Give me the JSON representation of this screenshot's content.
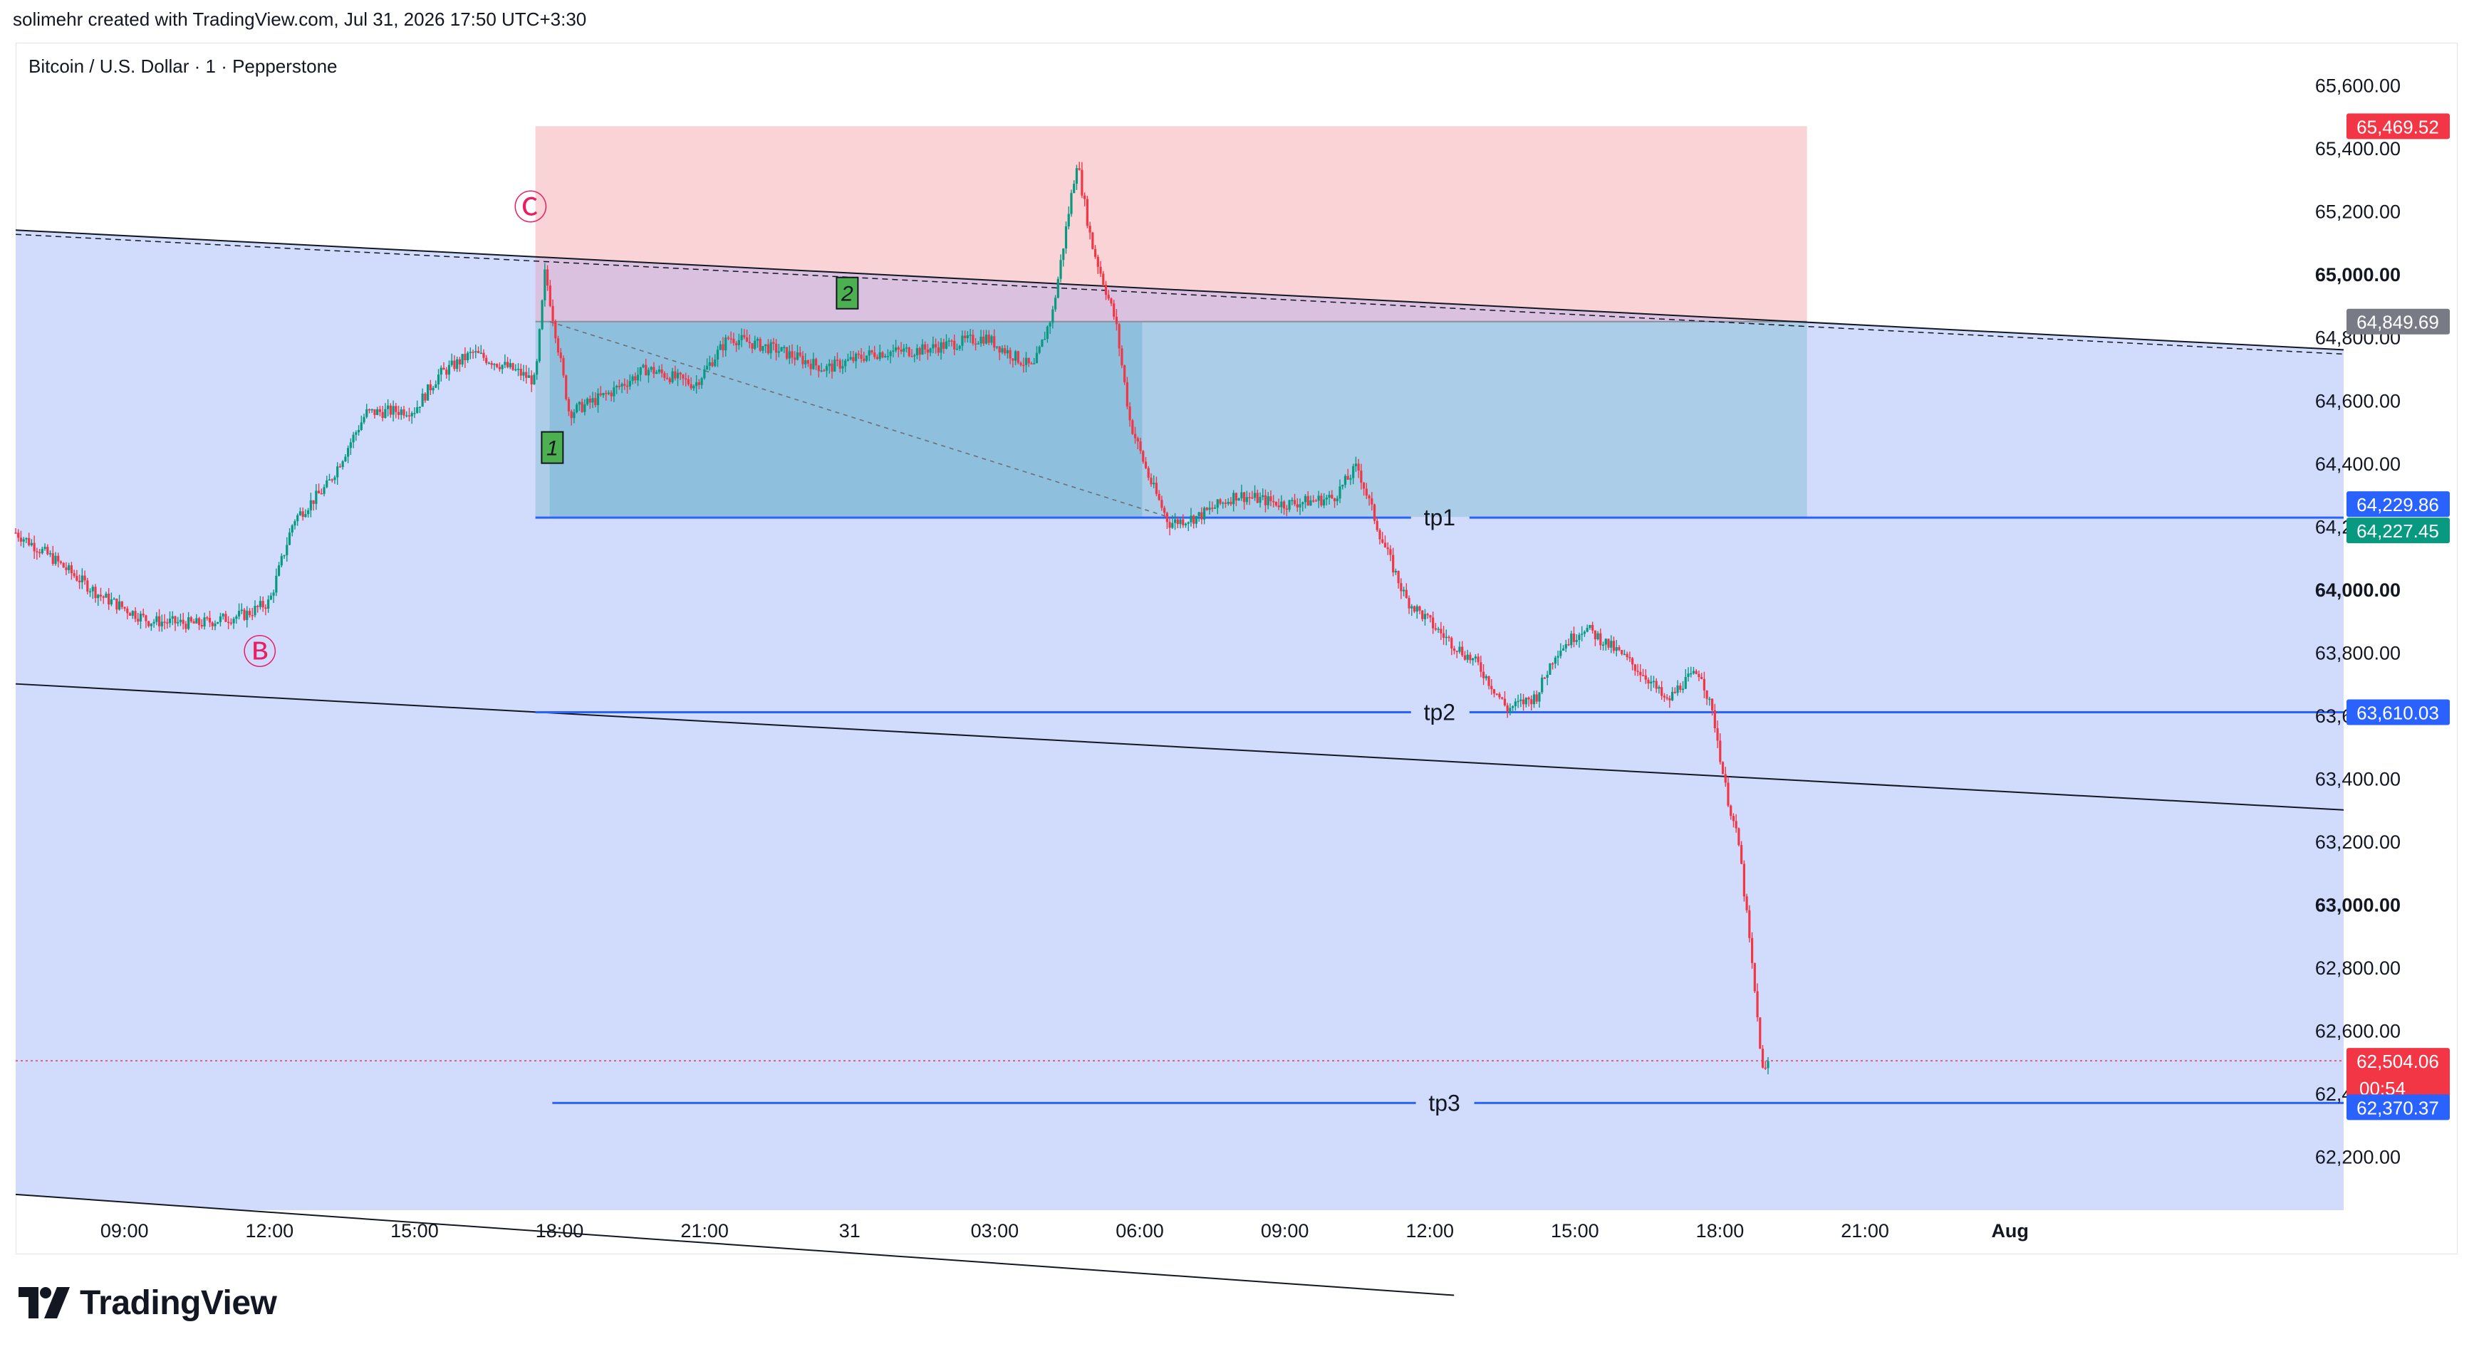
{
  "header": {
    "text": "solimehr created with TradingView.com, Jul 31, 2026 17:50 UTC+3:30"
  },
  "symbol_title": "Bitcoin / U.S. Dollar · 1 · Pepperstone",
  "footer": {
    "brand": "TradingView"
  },
  "colors": {
    "channel_fill": "#d1dcfc",
    "stop_zone": "#f9d3d6",
    "target_zone": "#a9cbe6",
    "target_zone_dark": "#8bbfdb",
    "overlap_zone": "#d6bfe0",
    "level_line": "#2962ff",
    "price_up": "#089981",
    "price_down": "#f23645",
    "wave_label": "#e91e63"
  },
  "chart_data": {
    "type": "candlestick",
    "title": "Bitcoin / U.S. Dollar · 1 · Pepperstone",
    "ylim": [
      62030,
      65730
    ],
    "y_ticks": [
      62200,
      62400,
      62600,
      62800,
      63000,
      63200,
      63400,
      63600,
      63800,
      64000,
      64200,
      64400,
      64600,
      64800,
      65000,
      65200,
      65400,
      65600
    ],
    "y_tick_labels": [
      "62,200.00",
      "62,400.00",
      "62,600.00",
      "62,800.00",
      "63,000.00",
      "63,200.00",
      "63,400.00",
      "63,600.00",
      "63,800.00",
      "64,000.00",
      "64,200.00",
      "64,400.00",
      "64,600.00",
      "64,800.00",
      "65,000.00",
      "65,200.00",
      "65,400.00",
      "65,600.00"
    ],
    "bold_y_ticks": [
      63000,
      64000,
      65000
    ],
    "x_ticks": [
      {
        "label": "09:00",
        "t": 9
      },
      {
        "label": "12:00",
        "t": 12
      },
      {
        "label": "15:00",
        "t": 15
      },
      {
        "label": "18:00",
        "t": 18
      },
      {
        "label": "21:00",
        "t": 21
      },
      {
        "label": "31",
        "t": 24
      },
      {
        "label": "03:00",
        "t": 27
      },
      {
        "label": "06:00",
        "t": 30
      },
      {
        "label": "09:00",
        "t": 33
      },
      {
        "label": "12:00",
        "t": 36
      },
      {
        "label": "15:00",
        "t": 39
      },
      {
        "label": "18:00",
        "t": 42
      },
      {
        "label": "21:00",
        "t": 45
      },
      {
        "label": "Aug",
        "t": 48
      }
    ],
    "x_range": [
      6.75,
      54.9
    ],
    "price_path": [
      [
        6.75,
        64180
      ],
      [
        7.5,
        64100
      ],
      [
        8.5,
        63980
      ],
      [
        9.5,
        63900
      ],
      [
        10.5,
        63890
      ],
      [
        11.5,
        63920
      ],
      [
        12,
        63960
      ],
      [
        12.5,
        64220
      ],
      [
        13.2,
        64330
      ],
      [
        14,
        64560
      ],
      [
        15,
        64570
      ],
      [
        15.5,
        64680
      ],
      [
        16.2,
        64750
      ],
      [
        17,
        64700
      ],
      [
        17.5,
        64660
      ],
      [
        17.7,
        65010
      ],
      [
        18.2,
        64560
      ],
      [
        19,
        64620
      ],
      [
        19.8,
        64700
      ],
      [
        20.8,
        64650
      ],
      [
        21.5,
        64800
      ],
      [
        22.5,
        64760
      ],
      [
        23.5,
        64700
      ],
      [
        24.5,
        64750
      ],
      [
        25.5,
        64760
      ],
      [
        26.8,
        64800
      ],
      [
        27.8,
        64700
      ],
      [
        28.2,
        64880
      ],
      [
        28.7,
        65360
      ],
      [
        29,
        65100
      ],
      [
        29.5,
        64850
      ],
      [
        29.8,
        64530
      ],
      [
        30.2,
        64350
      ],
      [
        30.6,
        64210
      ],
      [
        31.2,
        64230
      ],
      [
        32,
        64300
      ],
      [
        33,
        64270
      ],
      [
        34,
        64290
      ],
      [
        34.5,
        64390
      ],
      [
        35,
        64160
      ],
      [
        35.5,
        63970
      ],
      [
        36.3,
        63850
      ],
      [
        37,
        63760
      ],
      [
        37.6,
        63620
      ],
      [
        38.2,
        63660
      ],
      [
        38.6,
        63800
      ],
      [
        39.2,
        63880
      ],
      [
        39.9,
        63800
      ],
      [
        40.5,
        63720
      ],
      [
        40.9,
        63640
      ],
      [
        41.2,
        63700
      ],
      [
        41.6,
        63740
      ],
      [
        41.9,
        63570
      ],
      [
        42.1,
        63380
      ],
      [
        42.4,
        63180
      ],
      [
        42.6,
        62900
      ],
      [
        42.8,
        62600
      ],
      [
        42.9,
        62450
      ],
      [
        43.0,
        62504.06
      ]
    ],
    "last_price": 62504.06,
    "levels": [
      {
        "name": "tp1",
        "price": 64227.45
      },
      {
        "name": "tp2",
        "price": 63610.03
      },
      {
        "name": "tp3",
        "price": 62370.37
      }
    ],
    "price_badges": [
      {
        "label": "65,469.52",
        "price": 65469.52,
        "color": "#f23645"
      },
      {
        "label": "64,849.69",
        "price": 64849.69,
        "color": "#787b86"
      },
      {
        "label": "64,229.86",
        "price": 64229.86,
        "color": "#2962ff"
      },
      {
        "label": "64,227.45",
        "price": 64227.45,
        "color": "#089981"
      },
      {
        "label": "63,610.03",
        "price": 63610.03,
        "color": "#2962ff"
      },
      {
        "label": "62,504.06",
        "price": 62504.06,
        "color": "#f23645"
      },
      {
        "label": "62,370.37",
        "price": 62370.37,
        "color": "#2962ff"
      }
    ],
    "countdown": "00:54",
    "position_tool": {
      "t_start": 17.5,
      "t_end": 43.8,
      "entry": 64849.69,
      "stop": 65469.52,
      "target": 64229.86,
      "filled_until_t": 30.05
    },
    "channel": {
      "upper": [
        [
          6.75,
          65140
        ],
        [
          54.9,
          64760
        ]
      ],
      "middle": [
        [
          6.75,
          63700
        ],
        [
          54.9,
          63300
        ]
      ],
      "lower": [
        [
          6.75,
          62080
        ],
        [
          36.5,
          61760
        ]
      ]
    },
    "wave_labels": [
      {
        "text": "Ⓑ",
        "t": 11.8,
        "price": 63800
      },
      {
        "text": "Ⓒ",
        "t": 17.4,
        "price": 65210
      }
    ],
    "counts": [
      {
        "text": "1",
        "t": 17.85,
        "price": 64450
      },
      {
        "text": "2",
        "t": 23.95,
        "price": 64940
      }
    ]
  }
}
